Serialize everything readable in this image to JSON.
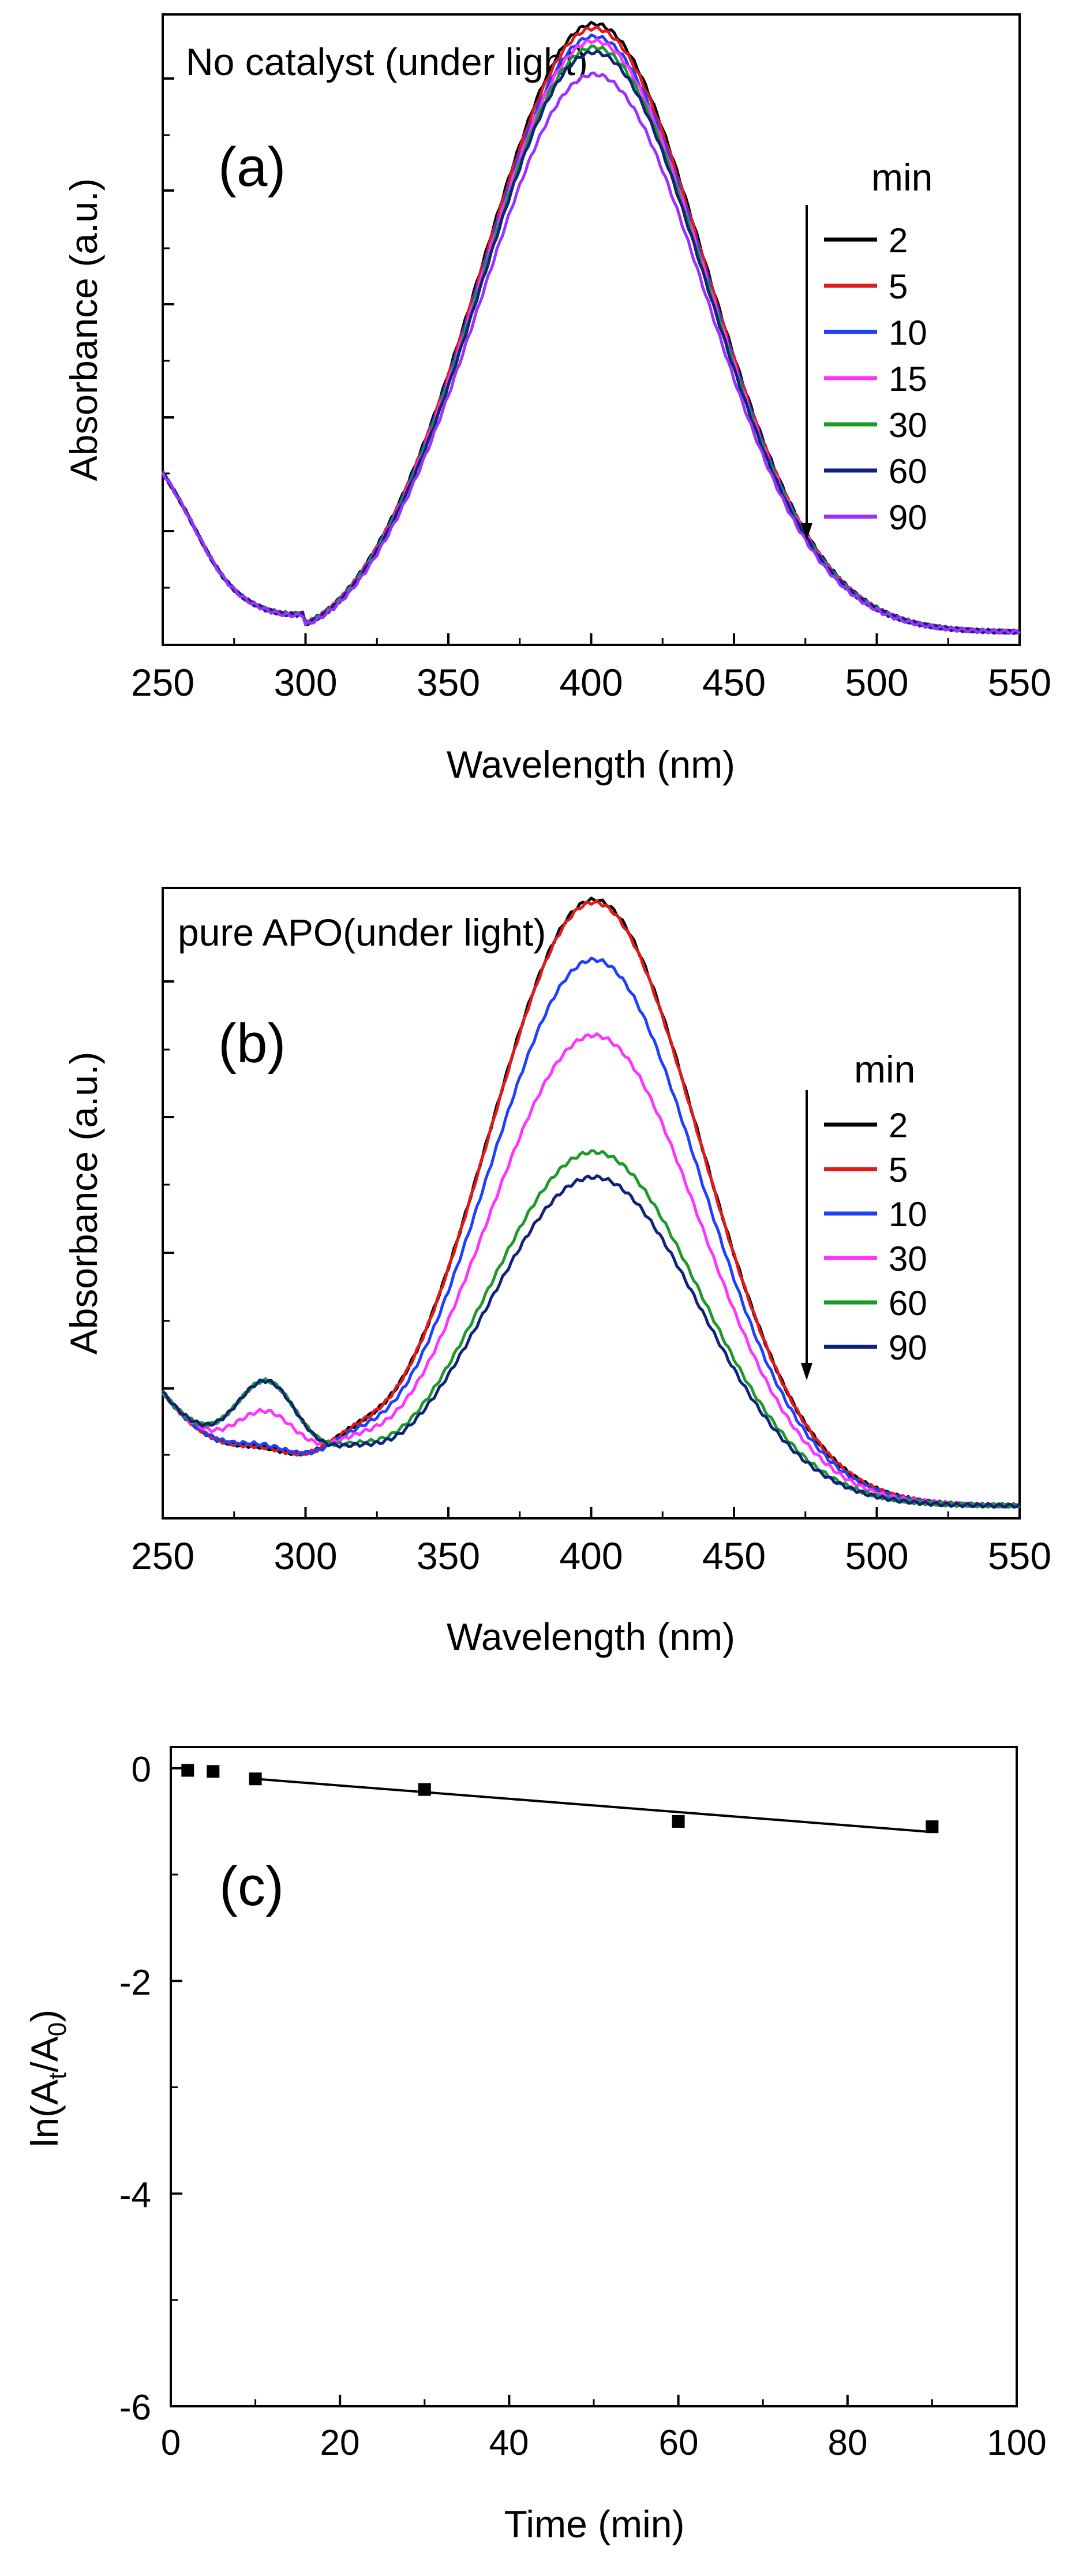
{
  "chart_data": [
    {
      "type": "line",
      "panel_label": "(a)",
      "title": "No catalyst (under light)",
      "xlabel": "Wavelength (nm)",
      "ylabel": "Absorbance (a.u.)",
      "xlim": [
        250,
        550
      ],
      "ylim": [
        0,
        1.0
      ],
      "xticks": [
        "250",
        "300",
        "350",
        "400",
        "450",
        "500",
        "550"
      ],
      "y_tick_labels_shown": false,
      "legend_title": "min",
      "legend_position": "right",
      "trend_arrow": "down",
      "peak_x": 401,
      "series": [
        {
          "name": "2",
          "color": "#000000",
          "peak": 0.965
        },
        {
          "name": "5",
          "color": "#e31a1c",
          "peak": 0.958
        },
        {
          "name": "10",
          "color": "#1f3fff",
          "peak": 0.945
        },
        {
          "name": "15",
          "color": "#ff33ff",
          "peak": 0.938
        },
        {
          "name": "30",
          "color": "#1b9a2a",
          "peak": 0.928
        },
        {
          "name": "60",
          "color": "#10217a",
          "peak": 0.92
        },
        {
          "name": "90",
          "color": "#9b30ff",
          "peak": 0.885
        }
      ]
    },
    {
      "type": "line",
      "panel_label": "(b)",
      "title": "pure APO(under light)",
      "xlabel": "Wavelength (nm)",
      "ylabel": "Absorbance (a.u.)",
      "xlim": [
        250,
        550
      ],
      "ylim": [
        0,
        1.0
      ],
      "xticks": [
        "250",
        "300",
        "350",
        "400",
        "450",
        "500",
        "550"
      ],
      "y_tick_labels_shown": false,
      "legend_title": "min",
      "legend_position": "right",
      "trend_arrow": "down",
      "peak_x": 401,
      "series": [
        {
          "name": "2",
          "color": "#000000",
          "peak": 0.96,
          "band290": 0.03
        },
        {
          "name": "5",
          "color": "#e31a1c",
          "peak": 0.956,
          "band290": 0.03
        },
        {
          "name": "10",
          "color": "#1f3fff",
          "peak": 0.865,
          "band290": 0.035
        },
        {
          "name": "30",
          "color": "#ff33ff",
          "peak": 0.745,
          "band290": 0.09
        },
        {
          "name": "60",
          "color": "#1b9a2a",
          "peak": 0.56,
          "band290": 0.14
        },
        {
          "name": "90",
          "color": "#10217a",
          "peak": 0.52,
          "band290": 0.14
        }
      ]
    },
    {
      "type": "scatter",
      "panel_label": "(c)",
      "xlabel": "Time (min)",
      "ylabel_main": "ln(A",
      "ylabel_sub1": "t",
      "ylabel_mid": "/A",
      "ylabel_sub2": "0",
      "ylabel_end": ")",
      "xlim": [
        0,
        100
      ],
      "ylim": [
        -6,
        0.2
      ],
      "xticks": [
        "0",
        "20",
        "40",
        "60",
        "80",
        "100"
      ],
      "yticks": [
        "0",
        "-2",
        "-4",
        "-6"
      ],
      "points": [
        {
          "x": 2,
          "y": -0.02
        },
        {
          "x": 5,
          "y": -0.03
        },
        {
          "x": 10,
          "y": -0.1
        },
        {
          "x": 30,
          "y": -0.2
        },
        {
          "x": 60,
          "y": -0.5
        },
        {
          "x": 90,
          "y": -0.55
        }
      ],
      "fit_line": {
        "x": [
          10,
          90
        ],
        "y": [
          -0.1,
          -0.6
        ]
      }
    }
  ]
}
